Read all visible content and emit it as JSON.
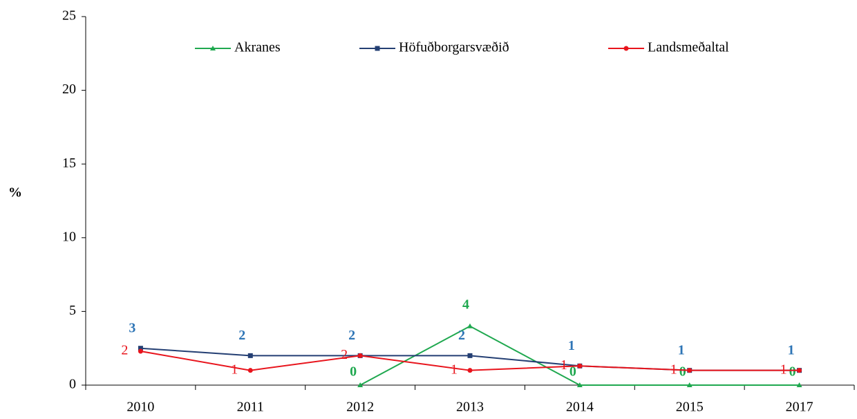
{
  "chart_data": {
    "type": "line",
    "ylabel": "%",
    "categories": [
      "2010",
      "2011",
      "2012",
      "2013",
      "2014",
      "2015",
      "2017"
    ],
    "series": [
      {
        "name": "Akranes",
        "color": "#1fa84f",
        "label_color": "#1fa84f",
        "marker": "triangle",
        "values": [
          null,
          null,
          0,
          4,
          0,
          0,
          0
        ],
        "value_labels": [
          null,
          null,
          "0",
          "4",
          "0",
          "0",
          "0"
        ]
      },
      {
        "name": "Höfuðborgarsvæðið",
        "color": "#243f73",
        "label_color": "#2e75b6",
        "marker": "square",
        "values": [
          2.5,
          2,
          2,
          2,
          1.3,
          1,
          1
        ],
        "value_labels": [
          "3",
          "2",
          "2",
          "2",
          "1",
          "1",
          "1"
        ]
      },
      {
        "name": "Landsmeðaltal",
        "color": "#e8141c",
        "label_color": "#e8141c",
        "marker": "circle",
        "values": [
          2.3,
          1,
          2,
          1,
          1.3,
          1,
          1
        ],
        "value_labels": [
          "2",
          "1",
          "2",
          "1",
          "1",
          "1",
          "1"
        ]
      }
    ],
    "ylim": [
      0,
      25
    ],
    "yticks": [
      0,
      5,
      10,
      15,
      20,
      25
    ],
    "grid": false,
    "legend": "top"
  }
}
